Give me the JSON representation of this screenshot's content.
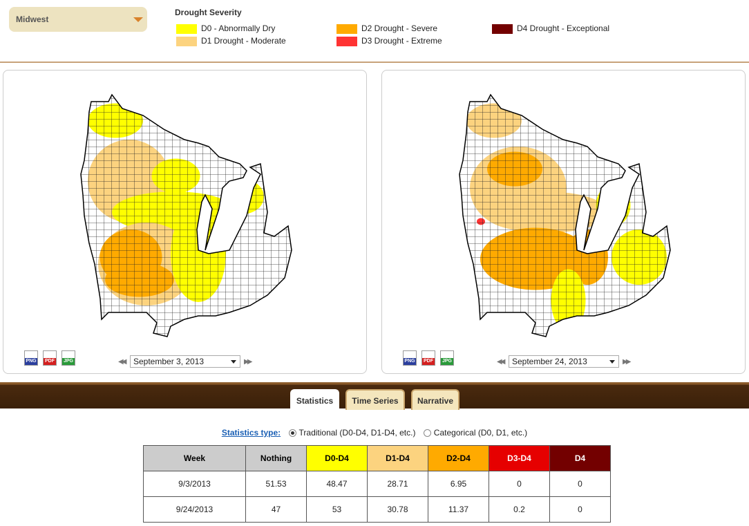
{
  "region_select": "Midwest",
  "legend": {
    "title": "Drought Severity",
    "items": [
      {
        "label": "D0 - Abnormally Dry",
        "color": "#ffff00"
      },
      {
        "label": "D1 Drought - Moderate",
        "color": "#fcd37f"
      },
      {
        "label": "D2 Drought - Severe",
        "color": "#ffaa00"
      },
      {
        "label": "D3 Drought - Extreme",
        "color": "#ff3333"
      },
      {
        "label": "D4 Drought - Exceptional",
        "color": "#730000"
      }
    ]
  },
  "maps": [
    {
      "date": "September 3, 2013",
      "exports": [
        "PNG",
        "PDF",
        "JPG"
      ]
    },
    {
      "date": "September 24, 2013",
      "exports": [
        "PNG",
        "PDF",
        "JPG"
      ]
    }
  ],
  "tabs": [
    "Statistics",
    "Time Series",
    "Narrative"
  ],
  "statistics_type": {
    "label": "Statistics type:",
    "options": [
      "Traditional (D0-D4, D1-D4, etc.)",
      "Categorical (D0, D1, etc.)"
    ]
  },
  "table": {
    "columns": [
      {
        "label": "Week",
        "color": "#cccccc",
        "text_color": "#000000"
      },
      {
        "label": "Nothing",
        "color": "#cccccc",
        "text_color": "#000000"
      },
      {
        "label": "D0-D4",
        "color": "#ffff00",
        "text_color": "#000000"
      },
      {
        "label": "D1-D4",
        "color": "#fcd37f",
        "text_color": "#000000"
      },
      {
        "label": "D2-D4",
        "color": "#ffaa00",
        "text_color": "#000000"
      },
      {
        "label": "D3-D4",
        "color": "#e60000",
        "text_color": "#ffffff"
      },
      {
        "label": "D4",
        "color": "#730000",
        "text_color": "#ffffff"
      }
    ],
    "rows": [
      [
        "9/3/2013",
        51.53,
        48.47,
        28.71,
        6.95,
        0,
        0
      ],
      [
        "9/24/2013",
        47,
        53,
        30.78,
        11.37,
        0.2,
        0
      ]
    ]
  }
}
